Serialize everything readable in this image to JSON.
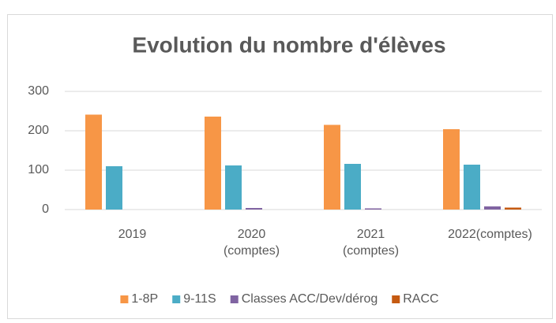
{
  "chart_data": {
    "type": "bar",
    "title": "Evolution du nombre d'élèves",
    "categories": [
      "2019",
      "2020 (comptes)",
      "2021 (comptes)",
      "2022(comptes)"
    ],
    "series": [
      {
        "name": "1-8P",
        "color": "#f79646",
        "values": [
          241,
          236,
          215,
          204
        ]
      },
      {
        "name": "9-11S",
        "color": "#4bacc6",
        "values": [
          110,
          112,
          116,
          114
        ]
      },
      {
        "name": "Classes ACC/Dev/dérog",
        "color": "#8064a2",
        "values": [
          0,
          4,
          3,
          8
        ]
      },
      {
        "name": "RACC",
        "color": "#c55a11",
        "values": [
          0,
          0,
          0,
          5
        ]
      }
    ],
    "ylim": [
      0,
      300
    ],
    "yticks": [
      0,
      100,
      200,
      300
    ],
    "grid": true,
    "legend": "bottom"
  }
}
